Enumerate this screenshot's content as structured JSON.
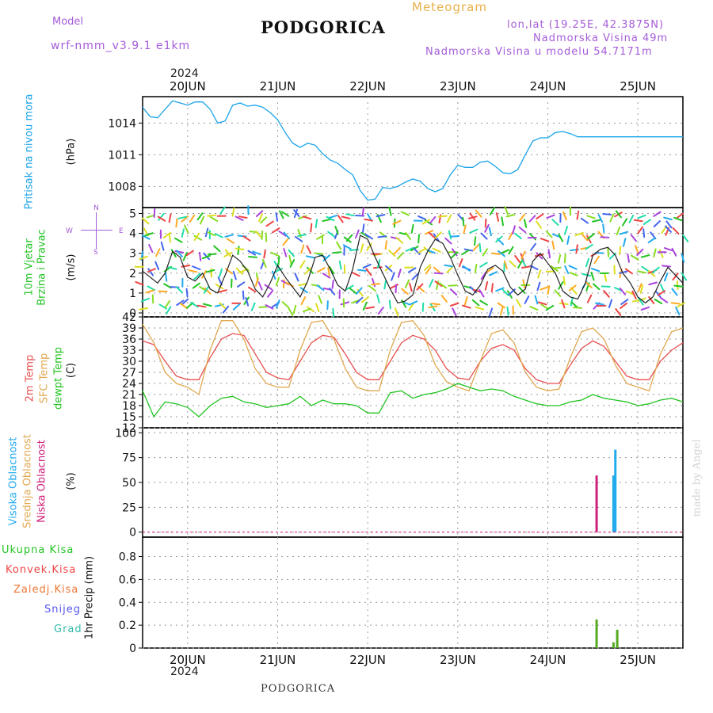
{
  "header": {
    "model_label": "Model",
    "model_name": "wrf-nmm_v3.9.1 e1km",
    "station": "PODGORICA",
    "meteogram": "Meteogram",
    "coords": "lon,lat (19.25E, 42.3875N)",
    "elevation": "Nadmorska Visina 49m",
    "model_elevation": "Nadmorska Visina u modelu 54.7171m",
    "year_top": "2024",
    "year_bottom": "2024",
    "footer_station": "PODGORICA",
    "watermark": "made by Angel"
  },
  "panel_labels": {
    "pressure": [
      "Pritisak na nivou mora",
      "(hPa)"
    ],
    "wind": [
      "10m Vjetar",
      "Brzina i Pravac",
      "(m/s)"
    ],
    "wind_compass": [
      "N",
      "S",
      "E",
      "W"
    ],
    "temp": [
      "2m Temp",
      "SFC Temp",
      "dewpt Temp",
      "(C)"
    ],
    "cloud": [
      "Visoka Oblacnost",
      "Srednja Oblacnost",
      "Niska Oblacnost",
      "(%)"
    ],
    "precip_unit": "1hr Precip (mm)",
    "precip_legend": [
      "Ukupna Kisa",
      "Konvek.Kisa",
      "Zaledj.Kisa",
      "Snijeg",
      "Grad"
    ]
  },
  "colors": {
    "pressure": "#1aa3e8",
    "temp2m": "#e85050",
    "sfc": "#e0a850",
    "dewpt": "#22c422",
    "high_cloud": "#22aaee",
    "mid_cloud": "#e0a850",
    "low_cloud": "#d0207a",
    "rain": "#55aa22",
    "konvek": "#ee4444",
    "zaledj": "#ee7733",
    "snijeg": "#5555ee",
    "grad": "#33bbaa",
    "wind_speed": "#222222",
    "wind_gust": "#e85050"
  },
  "chart_data": {
    "type": "line",
    "x_unit": "hours from 2024-06-19 12:00 UTC",
    "x_range": [
      0,
      144
    ],
    "day_ticks": [
      "20JUN",
      "21JUN",
      "22JUN",
      "23JUN",
      "24JUN",
      "25JUN"
    ],
    "day_tick_hours": [
      12,
      36,
      60,
      84,
      108,
      132
    ],
    "panels": [
      {
        "name": "pressure",
        "ylabel": "(hPa)",
        "yticks": [
          1008,
          1011,
          1014
        ],
        "ylim": [
          1006,
          1016.5
        ],
        "series": [
          {
            "name": "Pritisak na nivou mora",
            "x": [
              0,
              2,
              4,
              6,
              8,
              10,
              12,
              14,
              16,
              18,
              20,
              22,
              24,
              26,
              28,
              30,
              32,
              34,
              36,
              38,
              40,
              42,
              44,
              46,
              48,
              50,
              52,
              54,
              56,
              58,
              60,
              62,
              64,
              66,
              68,
              70,
              72,
              74,
              76,
              78,
              80,
              82,
              84,
              86,
              88,
              90,
              92,
              94,
              96,
              98,
              100,
              102,
              104,
              106,
              108,
              110,
              112,
              114,
              116,
              118,
              120,
              122,
              124,
              126,
              128,
              130,
              132,
              134,
              136,
              138,
              140,
              142,
              144
            ],
            "values": [
              1015.5,
              1014.6,
              1014.5,
              1015.3,
              1016.1,
              1015.9,
              1015.7,
              1016.0,
              1016.0,
              1015.3,
              1014.0,
              1014.2,
              1015.7,
              1015.9,
              1015.6,
              1015.7,
              1015.5,
              1015.0,
              1014.3,
              1013.1,
              1012.1,
              1011.7,
              1012.1,
              1011.9,
              1011.1,
              1010.5,
              1010.2,
              1009.6,
              1009.1,
              1007.6,
              1006.7,
              1006.8,
              1007.9,
              1007.8,
              1008.0,
              1008.4,
              1008.7,
              1008.5,
              1007.8,
              1007.5,
              1007.8,
              1009.1,
              1010.0,
              1009.8,
              1009.8,
              1010.3,
              1010.4,
              1009.9,
              1009.3,
              1009.2,
              1009.6,
              1011.0,
              1012.3,
              1012.6,
              1012.6,
              1013.1,
              1013.2,
              1013.0,
              1012.7,
              1012.7,
              1012.7,
              1012.7,
              1012.7,
              1012.7,
              1012.7,
              1012.7,
              1012.7,
              1012.7,
              1012.7,
              1012.7,
              1012.7,
              1012.7,
              1012.7
            ]
          }
        ]
      },
      {
        "name": "wind",
        "ylabel": "(m/s)",
        "yticks": [
          0,
          1,
          2,
          3,
          4,
          5
        ],
        "ylim": [
          -0.2,
          5.3
        ],
        "series": [
          {
            "name": "10m Vjetar Brzina",
            "x": [
              0,
              2,
              4,
              6,
              8,
              10,
              12,
              14,
              16,
              18,
              20,
              22,
              24,
              26,
              28,
              30,
              32,
              34,
              36,
              38,
              40,
              42,
              44,
              46,
              48,
              50,
              52,
              54,
              56,
              58,
              60,
              62,
              64,
              66,
              68,
              70,
              72,
              74,
              76,
              78,
              80,
              82,
              84,
              86,
              88,
              90,
              92,
              94,
              96,
              98,
              100,
              102,
              104,
              106,
              108,
              110,
              112,
              114,
              116,
              118,
              120,
              122,
              124,
              126,
              128,
              130,
              132,
              134,
              136,
              138,
              140,
              142,
              144
            ],
            "values": [
              2.1,
              1.8,
              1.5,
              2.0,
              3.1,
              2.8,
              1.8,
              1.6,
              2.0,
              1.2,
              1.0,
              1.9,
              2.9,
              2.6,
              2.1,
              1.2,
              0.8,
              1.5,
              2.4,
              1.8,
              1.3,
              0.8,
              1.6,
              2.8,
              2.9,
              2.2,
              1.4,
              1.1,
              2.2,
              3.9,
              3.7,
              2.8,
              2.0,
              1.2,
              0.5,
              0.6,
              0.9,
              2.3,
              3.1,
              3.7,
              3.5,
              2.8,
              1.9,
              1.1,
              0.9,
              1.4,
              2.2,
              2.4,
              2.1,
              1.3,
              0.9,
              1.2,
              2.6,
              3.0,
              2.5,
              2.0,
              1.1,
              0.8,
              0.7,
              1.5,
              2.9,
              3.2,
              3.3,
              2.9,
              2.0,
              1.5,
              0.8,
              0.5,
              0.8,
              1.6,
              2.3,
              1.9,
              1.5
            ]
          }
        ]
      },
      {
        "name": "temperature",
        "ylabel": "(C)",
        "yticks": [
          12,
          15,
          18,
          21,
          24,
          27,
          30,
          33,
          36,
          39,
          42
        ],
        "ylim": [
          12,
          42
        ],
        "series": [
          {
            "name": "2m Temp",
            "x": [
              0,
              3,
              6,
              9,
              12,
              15,
              18,
              21,
              24,
              27,
              30,
              33,
              36,
              39,
              42,
              45,
              48,
              51,
              54,
              57,
              60,
              63,
              66,
              69,
              72,
              75,
              78,
              81,
              84,
              87,
              90,
              93,
              96,
              99,
              102,
              105,
              108,
              111,
              114,
              117,
              120,
              123,
              126,
              129,
              132,
              135,
              138,
              141,
              144
            ],
            "values": [
              35.5,
              34.5,
              30,
              26,
              25,
              25,
              31,
              36,
              37.5,
              37,
              32,
              27,
              25.5,
              25,
              30,
              35,
              37,
              36.5,
              32,
              27,
              25,
              25,
              30,
              35,
              37,
              36,
              33,
              28,
              25.5,
              25,
              30,
              33.5,
              34.5,
              33,
              28,
              25,
              24,
              24,
              29,
              33.5,
              35.5,
              34,
              30,
              26,
              25,
              25,
              30,
              33,
              35
            ]
          },
          {
            "name": "SFC Temp",
            "x": [
              0,
              3,
              6,
              9,
              12,
              15,
              18,
              21,
              24,
              27,
              30,
              33,
              36,
              39,
              42,
              45,
              48,
              51,
              54,
              57,
              60,
              63,
              66,
              69,
              72,
              75,
              78,
              81,
              84,
              87,
              90,
              93,
              96,
              99,
              102,
              105,
              108,
              111,
              114,
              117,
              120,
              123,
              126,
              129,
              132,
              135,
              138,
              141,
              144
            ],
            "values": [
              40,
              35,
              27,
              24,
              23,
              21,
              33,
              41,
              41,
              36,
              28,
              24,
              23,
              23,
              33,
              40.5,
              41,
              36,
              28,
              23,
              22,
              22,
              33,
              40.5,
              41,
              37,
              29,
              24.5,
              23,
              22,
              30,
              37.5,
              38.5,
              35,
              27,
              23,
              22,
              22.5,
              31,
              38,
              39,
              36,
              29,
              24,
              23,
              22,
              32,
              38,
              39
            ]
          },
          {
            "name": "dewpt Temp",
            "x": [
              0,
              3,
              6,
              9,
              12,
              15,
              18,
              21,
              24,
              27,
              30,
              33,
              36,
              39,
              42,
              45,
              48,
              51,
              54,
              57,
              60,
              63,
              66,
              69,
              72,
              75,
              78,
              81,
              84,
              87,
              90,
              93,
              96,
              99,
              102,
              105,
              108,
              111,
              114,
              117,
              120,
              123,
              126,
              129,
              132,
              135,
              138,
              141,
              144
            ],
            "values": [
              22,
              15,
              19,
              18.5,
              17.5,
              15,
              18,
              20,
              20.5,
              19,
              18.5,
              17.5,
              18,
              18.5,
              20.5,
              18,
              19.5,
              18.5,
              18.5,
              18,
              16,
              16,
              21.5,
              22,
              20,
              21,
              21.5,
              22.5,
              24,
              23,
              22,
              22.5,
              22,
              20.5,
              19.5,
              18.5,
              18,
              18,
              19,
              19.5,
              21,
              20,
              19.5,
              19,
              18,
              18.5,
              19.5,
              20,
              19
            ]
          }
        ]
      },
      {
        "name": "cloud",
        "ylabel": "(%)",
        "yticks": [
          0,
          25,
          50,
          75,
          100
        ],
        "ylim": [
          -5,
          105
        ],
        "bars": [
          {
            "series": "Visoka Oblacnost",
            "x": [
              125.5,
              126
            ],
            "values": [
              57,
              83
            ]
          },
          {
            "series": "Niska Oblacnost",
            "x": [
              121
            ],
            "values": [
              57
            ]
          }
        ]
      },
      {
        "name": "precip",
        "ylabel": "1hr Precip (mm)",
        "yticks": [
          0,
          0.2,
          0.4,
          0.6,
          0.8
        ],
        "ylim": [
          0,
          0.97
        ],
        "bars": [
          {
            "series": "Ukupna Kisa",
            "x": [
              121,
              125.5,
              126.5
            ],
            "values": [
              0.25,
              0.05,
              0.16
            ]
          }
        ]
      }
    ]
  }
}
